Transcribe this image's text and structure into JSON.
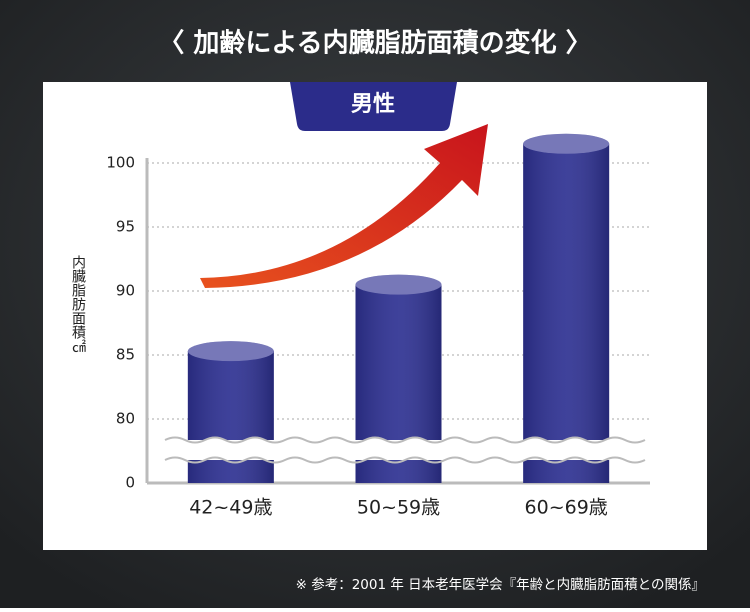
{
  "chart_data": {
    "type": "bar",
    "title": "〈 加齢による内臓脂肪面積の変化 〉",
    "subtitle": "男性",
    "y_label": "内臓脂肪面積㎠",
    "categories": [
      "42~49歳",
      "50~59歳",
      "60~69歳"
    ],
    "values": [
      85.3,
      90.5,
      101.5
    ],
    "color": "#2e3192",
    "ylim": [
      0,
      100
    ],
    "yticks": [
      0,
      80,
      85,
      90,
      95,
      100
    ],
    "grid": true,
    "axis_break": true,
    "note": "※ 参考：2001 年 日本老年医学会『年齢と内臓脂肪面積との関係』"
  }
}
